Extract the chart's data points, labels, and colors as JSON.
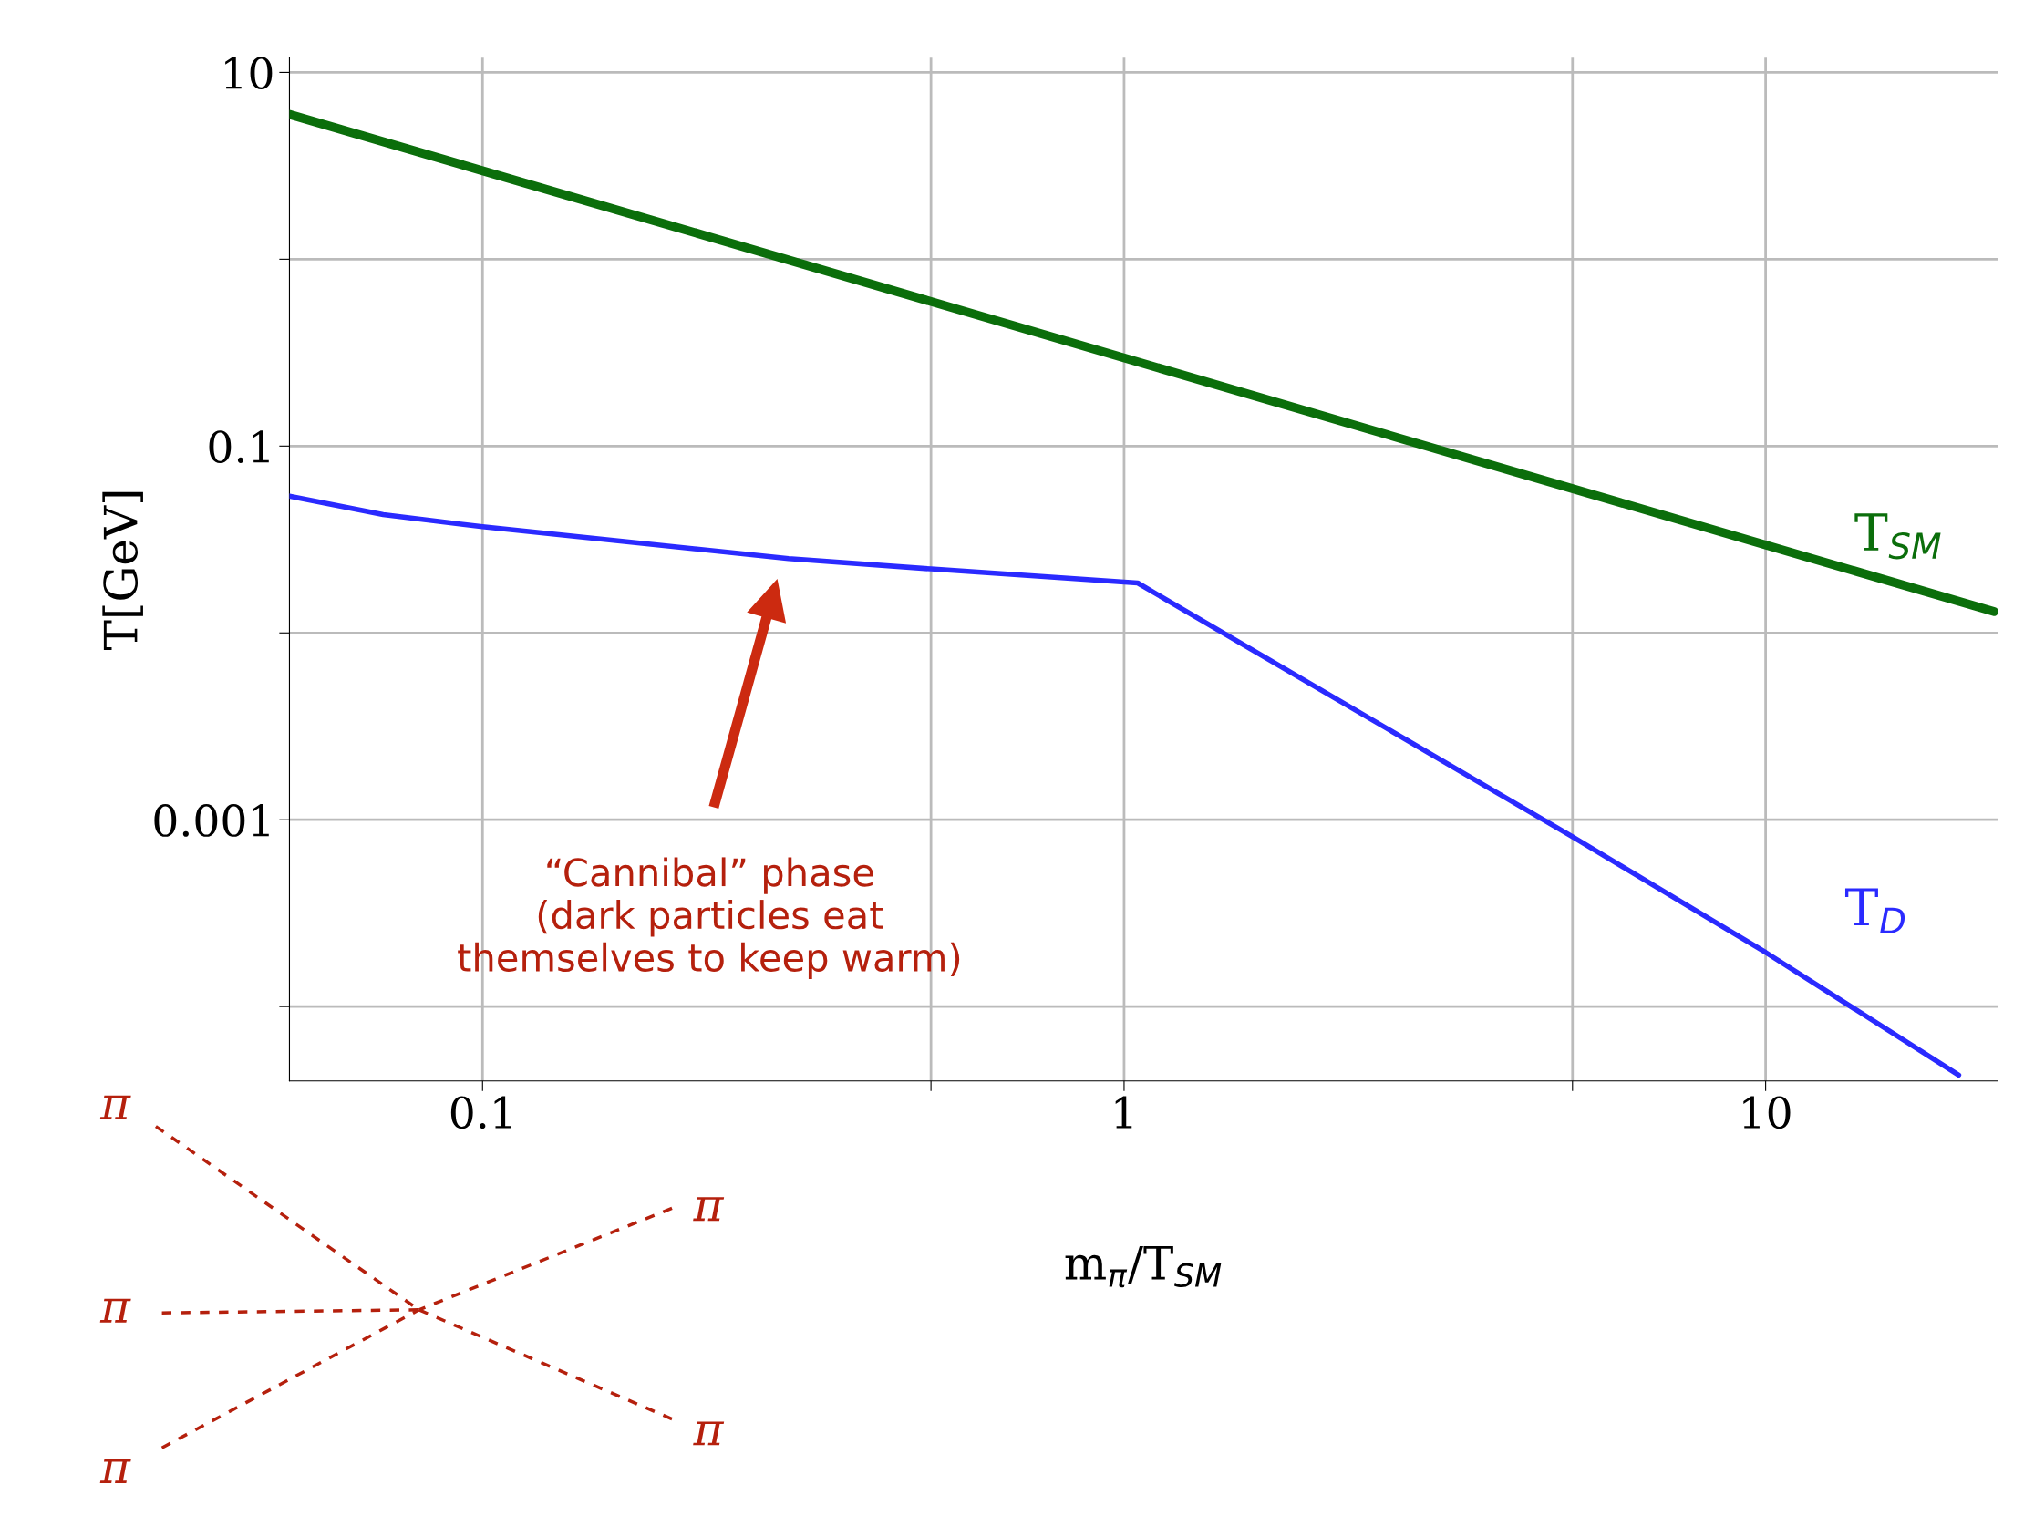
{
  "chart_data": {
    "type": "line",
    "xlabel": "m$_{π}$/T$_{SM}$",
    "ylabel": "T[GeV]",
    "log": "xy",
    "grid": true,
    "legend": false,
    "line_style": "solid",
    "marker": "none",
    "xlim": [
      0.05,
      23
    ],
    "ylim": [
      4e-05,
      12
    ],
    "xticks": [
      0.1,
      {
        "value": 0.5,
        "label": null
      },
      1,
      {
        "value": 5,
        "label": null
      },
      10
    ],
    "yticks": [
      {
        "value": 0.0001,
        "label": null
      },
      0.001,
      {
        "value": 0.01,
        "label": null
      },
      0.1,
      {
        "value": 1,
        "label": null
      },
      10
    ],
    "series": [
      {
        "name": "T$_{SM}$",
        "color": "#0b6e0b",
        "x": [
          0.05,
          22.7
        ],
        "values": [
          5.96,
          0.013
        ]
      },
      {
        "name": "T$_{D}$",
        "color": "#2a2aff",
        "x": [
          0.05,
          0.07,
          0.1,
          0.3,
          0.5,
          1.05,
          5,
          10,
          20
        ],
        "values": [
          0.054,
          0.043,
          0.037,
          0.025,
          0.022,
          0.0185,
          0.00081,
          0.000195,
          4.3e-05
        ]
      }
    ],
    "annotations": [
      "“Cannibal” phase\n(dark particles eat\nthemselves to keep warm)",
      "π",
      "π",
      "π",
      "π",
      "π"
    ]
  }
}
